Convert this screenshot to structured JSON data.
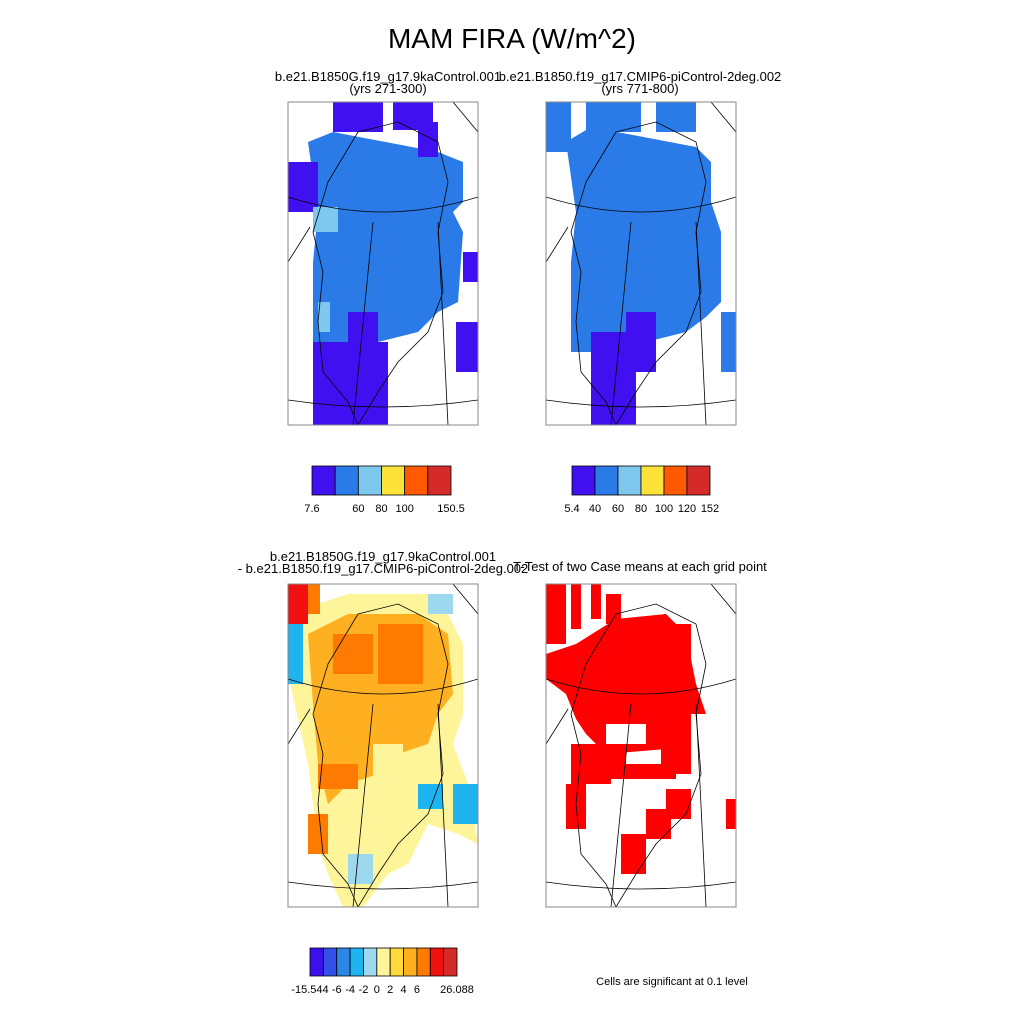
{
  "title": "MAM FIRA (W/m^2)",
  "panels": [
    {
      "title": [
        "b.e21.B1850G.f19_g17.9kaControl.001",
        "(yrs 271-300)"
      ],
      "colorbar": {
        "colors": [
          "#4010f0",
          "#2a7be8",
          "#7ec8f0",
          "#fde23a",
          "#ff5a00",
          "#d42a2a"
        ],
        "labels": [
          "7.6",
          null,
          "60",
          "80",
          "100",
          null,
          "150.5"
        ]
      }
    },
    {
      "title": [
        "b.e21.B1850.f19_g17.CMIP6-piControl-2deg.002",
        "(yrs 771-800)"
      ],
      "colorbar": {
        "colors": [
          "#4010f0",
          "#2a7be8",
          "#7ec8f0",
          "#fde23a",
          "#ff5a00",
          "#d42a2a"
        ],
        "labels": [
          "5.4",
          "40",
          "60",
          "80",
          "100",
          "120",
          "152"
        ]
      }
    },
    {
      "title": [
        "b.e21.B1850G.f19_g17.9kaControl.001",
        "- b.e21.B1850.f19_g17.CMIP6-piControl-2deg.002"
      ],
      "colorbar": {
        "colors": [
          "#3c10ee",
          "#3050e8",
          "#2c86e8",
          "#1eb4f0",
          "#9ed8ee",
          "#fef59a",
          "#fed93a",
          "#feb020",
          "#fe7a00",
          "#f01010",
          "#d42a2a"
        ],
        "labels": [
          "-15.544",
          null,
          "-6",
          "-4",
          "-2",
          "0",
          "2",
          "4",
          "6",
          null,
          null,
          "26.088"
        ]
      }
    },
    {
      "title": [
        "T-Test of two Case means at each grid point"
      ]
    }
  ],
  "footnote": "Cells are significant at 0.1 level"
}
